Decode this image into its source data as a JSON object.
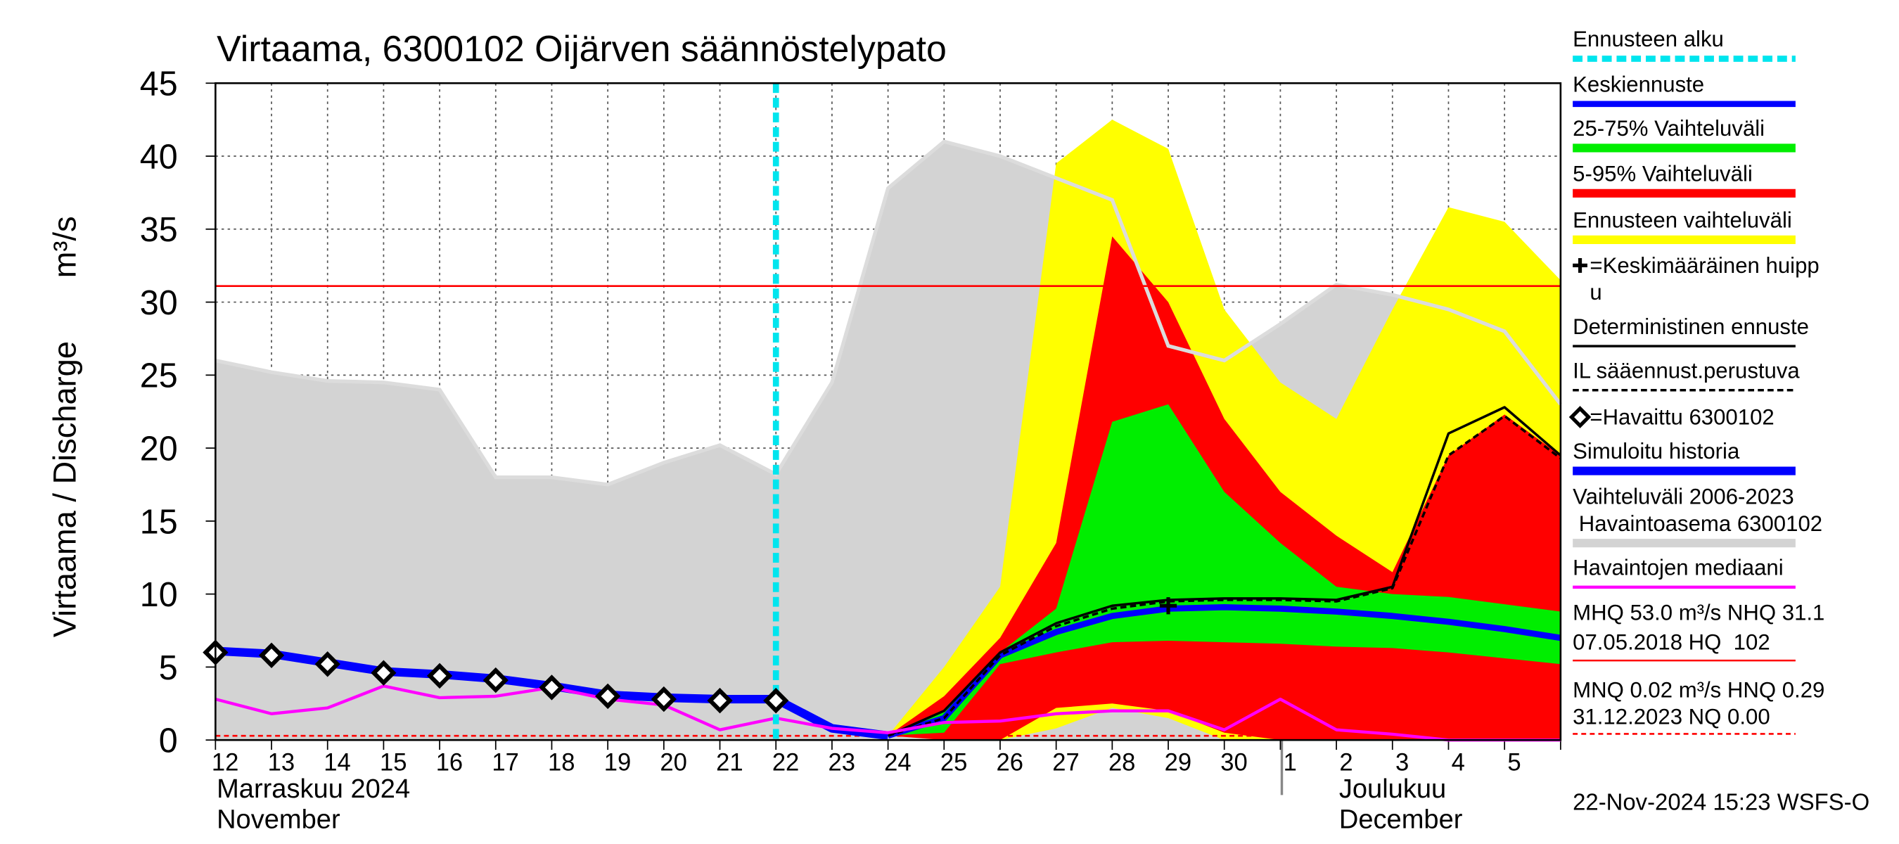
{
  "chart_data": {
    "type": "line",
    "title": "Virtaama, 6300102 Oijärven säännöstelypato",
    "y_label": "Virtaama / Discharge",
    "y_unit": "m³/s",
    "categories": [
      "12",
      "13",
      "14",
      "15",
      "16",
      "17",
      "18",
      "19",
      "20",
      "21",
      "22",
      "23",
      "24",
      "25",
      "26",
      "27",
      "28",
      "29",
      "30",
      "1",
      "2",
      "3",
      "4",
      "5",
      null
    ],
    "month_labels": [
      "Marraskuu 2024",
      "November",
      "Joulukuu",
      "December"
    ],
    "ylim": [
      0,
      45
    ],
    "yticks": [
      0,
      5,
      10,
      15,
      20,
      25,
      30,
      35,
      40,
      45
    ],
    "grid": true,
    "hlines": [
      {
        "value": 31.1,
        "color": "#ff0000"
      },
      {
        "value": 0.29,
        "color": "#ff0000",
        "dashed": true
      }
    ],
    "series": [
      {
        "name": "Ennusteen alku",
        "kind": "vline",
        "color": "#00e5ee",
        "at": 10
      },
      {
        "name": "Keskiennuste",
        "kind": "line",
        "color": "#0000ff",
        "width": 5,
        "values": [
          null,
          null,
          null,
          null,
          null,
          null,
          null,
          null,
          null,
          null,
          null,
          null,
          0.3,
          1.5,
          5.8,
          7.4,
          8.5,
          9.0,
          9.1,
          9.0,
          8.8,
          8.5,
          8.1,
          7.6,
          7.0
        ]
      },
      {
        "name": "25-75% Vaihteluväli",
        "kind": "band",
        "color": "#00ee00",
        "high": [
          null,
          null,
          null,
          null,
          null,
          null,
          null,
          null,
          null,
          null,
          null,
          null,
          0.3,
          2,
          6,
          9,
          21.8,
          23,
          17,
          13.5,
          10.5,
          10,
          9.8,
          9.3,
          8.8
        ],
        "low": [
          null,
          null,
          null,
          null,
          null,
          null,
          null,
          null,
          null,
          null,
          null,
          null,
          0.3,
          0.5,
          5.2,
          6.0,
          6.7,
          6.8,
          6.7,
          6.6,
          6.4,
          6.3,
          6.0,
          5.6,
          5.2
        ]
      },
      {
        "name": "5-95% Vaihteluväli",
        "kind": "band",
        "color": "#ff0000",
        "high": [
          null,
          null,
          null,
          null,
          null,
          null,
          null,
          null,
          null,
          null,
          null,
          null,
          0.3,
          3,
          7,
          13.5,
          34.5,
          30,
          22,
          17,
          14,
          11.5,
          19.5,
          22.3,
          19.5
        ],
        "low": [
          null,
          null,
          null,
          null,
          null,
          null,
          null,
          null,
          null,
          null,
          null,
          null,
          0.3,
          0,
          0,
          2.2,
          2.5,
          2,
          0.5,
          0,
          0,
          0,
          0,
          0,
          0
        ]
      },
      {
        "name": "Ennusteen vaihteluväli",
        "kind": "band",
        "color": "#ffff00",
        "high": [
          null,
          null,
          null,
          null,
          null,
          null,
          null,
          null,
          null,
          null,
          null,
          null,
          0.3,
          5,
          10.5,
          39.5,
          42.5,
          40.5,
          29.5,
          24.5,
          22,
          29.5,
          36.5,
          35.5,
          31.5
        ],
        "low": [
          null,
          null,
          null,
          null,
          null,
          null,
          null,
          null,
          null,
          null,
          null,
          null,
          0.3,
          0,
          0,
          0.8,
          2.2,
          1.5,
          0,
          0,
          0,
          0,
          0,
          0,
          0
        ]
      },
      {
        "name": [
          "=Keskimääräinen huipp",
          "u"
        ],
        "kind": "point",
        "color": "#000000",
        "values": [
          null,
          null,
          null,
          null,
          null,
          null,
          null,
          null,
          null,
          null,
          null,
          null,
          null,
          null,
          null,
          null,
          null,
          9.2,
          null,
          null,
          null,
          null,
          null,
          null,
          null
        ]
      },
      {
        "name": "Deterministinen ennuste",
        "kind": "line",
        "color": "#000000",
        "width": 2,
        "values": [
          null,
          null,
          null,
          null,
          null,
          null,
          null,
          null,
          null,
          null,
          null,
          null,
          0.3,
          2,
          6,
          8,
          9.2,
          9.6,
          9.7,
          9.7,
          9.6,
          10.5,
          21,
          22.8,
          19.5
        ]
      },
      {
        "name": "IL sääennust.perustuva",
        "kind": "line",
        "color": "#000000",
        "width": 2,
        "dashed": true,
        "values": [
          null,
          null,
          null,
          null,
          null,
          null,
          null,
          null,
          null,
          null,
          null,
          null,
          0.3,
          1.5,
          5.8,
          7.8,
          9,
          9.5,
          9.6,
          9.6,
          9.5,
          10.4,
          19.5,
          22.2,
          19.3
        ]
      },
      {
        "name": "=Havaittu 6300102",
        "kind": "markers",
        "color": "#000000",
        "values": [
          6.0,
          5.8,
          5.2,
          4.6,
          4.4,
          4.1,
          3.6,
          3.0,
          2.8,
          2.7,
          2.7,
          null,
          null,
          null,
          null,
          null,
          null,
          null,
          null,
          null,
          null,
          null,
          null,
          null,
          null
        ]
      },
      {
        "name": "Simuloitu historia",
        "kind": "line",
        "color": "#0000ff",
        "width": 7,
        "values": [
          6.1,
          5.9,
          5.3,
          4.7,
          4.5,
          4.2,
          3.7,
          3.1,
          2.9,
          2.8,
          2.8,
          0.8,
          0.3,
          null,
          null,
          null,
          null,
          null,
          null,
          null,
          null,
          null,
          null,
          null,
          null
        ]
      },
      {
        "name": [
          "Vaihteluväli 2006-2023",
          " Havaintoasema 6300102"
        ],
        "kind": "band",
        "color": "#d3d3d3",
        "high": [
          26,
          25.2,
          24.6,
          24.5,
          24,
          18,
          18,
          17.5,
          19,
          20.2,
          18.2,
          24.5,
          37.8,
          41,
          40,
          38.5,
          37,
          27,
          26,
          28.5,
          31.2,
          30.5,
          29.5,
          28,
          23
        ],
        "low": [
          0,
          0,
          0,
          0,
          0,
          0,
          0,
          0,
          0,
          0,
          0,
          0,
          0,
          0,
          0,
          0,
          0,
          0,
          0,
          0,
          0,
          0,
          0,
          0,
          0
        ]
      },
      {
        "name": "Havaintojen mediaani",
        "kind": "line",
        "color": "#ff00ff",
        "width": 2.5,
        "values": [
          2.8,
          1.8,
          2.2,
          3.7,
          2.9,
          3.0,
          3.6,
          2.8,
          2.4,
          0.7,
          1.5,
          0.8,
          0.5,
          1.2,
          1.3,
          1.8,
          2.0,
          2.0,
          0.7,
          2.8,
          0.7,
          0.4,
          0,
          0,
          0
        ]
      }
    ],
    "stats": [
      "MHQ 53.0 m³/s NHQ 31.1",
      "07.05.2018 HQ  102",
      "MNQ 0.02 m³/s HNQ 0.29",
      "31.12.2023 NQ 0.00"
    ],
    "footer": "22-Nov-2024 15:23 WSFS-O"
  }
}
